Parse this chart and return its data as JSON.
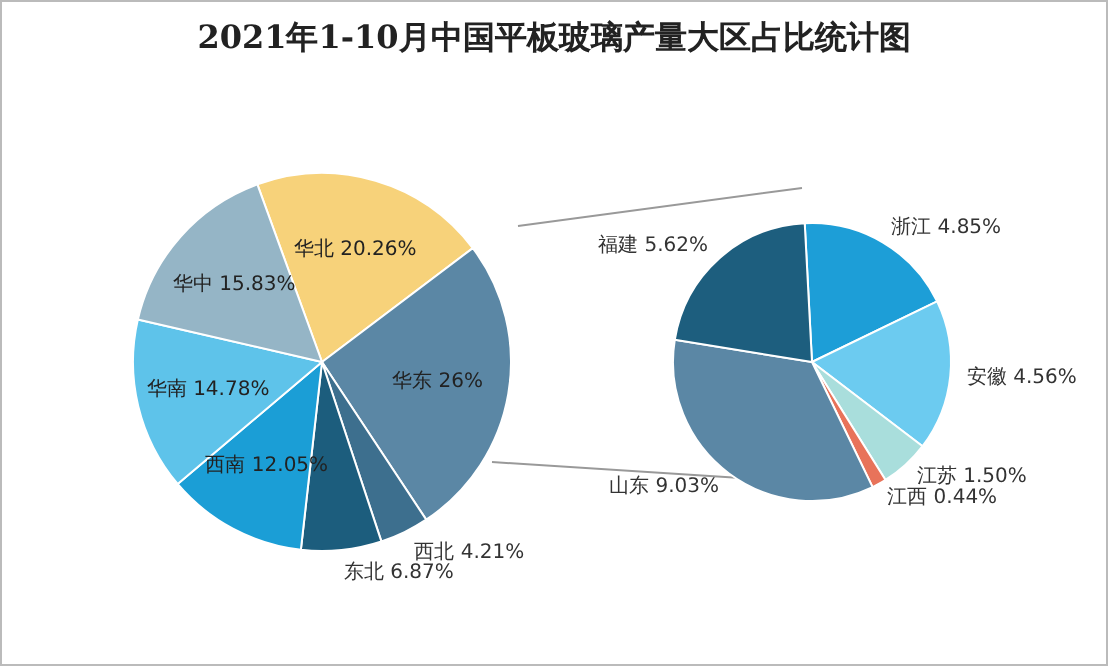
{
  "chart_data": [
    {
      "type": "pie",
      "title": "2021年1-10月中国平板玻璃产量大区占比统计图",
      "categories": [
        "华北",
        "华东",
        "西北",
        "东北",
        "西南",
        "华南",
        "华中"
      ],
      "values": [
        20.26,
        26,
        4.21,
        6.87,
        12.05,
        14.78,
        15.83
      ],
      "value_labels": [
        "20.26%",
        "26%",
        "4.21%",
        "6.87%",
        "12.05%",
        "14.78%",
        "15.83%"
      ],
      "colors": [
        "#f7d27a",
        "#5b87a5",
        "#3d6f8e",
        "#1c5d7d",
        "#1b9ed6",
        "#5ec3ea",
        "#95b5c6"
      ]
    },
    {
      "type": "pie",
      "categories": [
        "浙江",
        "安徽",
        "江苏",
        "江西",
        "山东",
        "福建"
      ],
      "values": [
        4.85,
        4.56,
        1.5,
        0.44,
        9.03,
        5.62
      ],
      "value_labels": [
        "4.85%",
        "4.56%",
        "1.50%",
        "0.44%",
        "9.03%",
        "5.62%"
      ],
      "colors": [
        "#1d9ed7",
        "#6ccbf0",
        "#a9dedc",
        "#e8735a",
        "#5b87a5",
        "#1d5e7e"
      ]
    }
  ]
}
